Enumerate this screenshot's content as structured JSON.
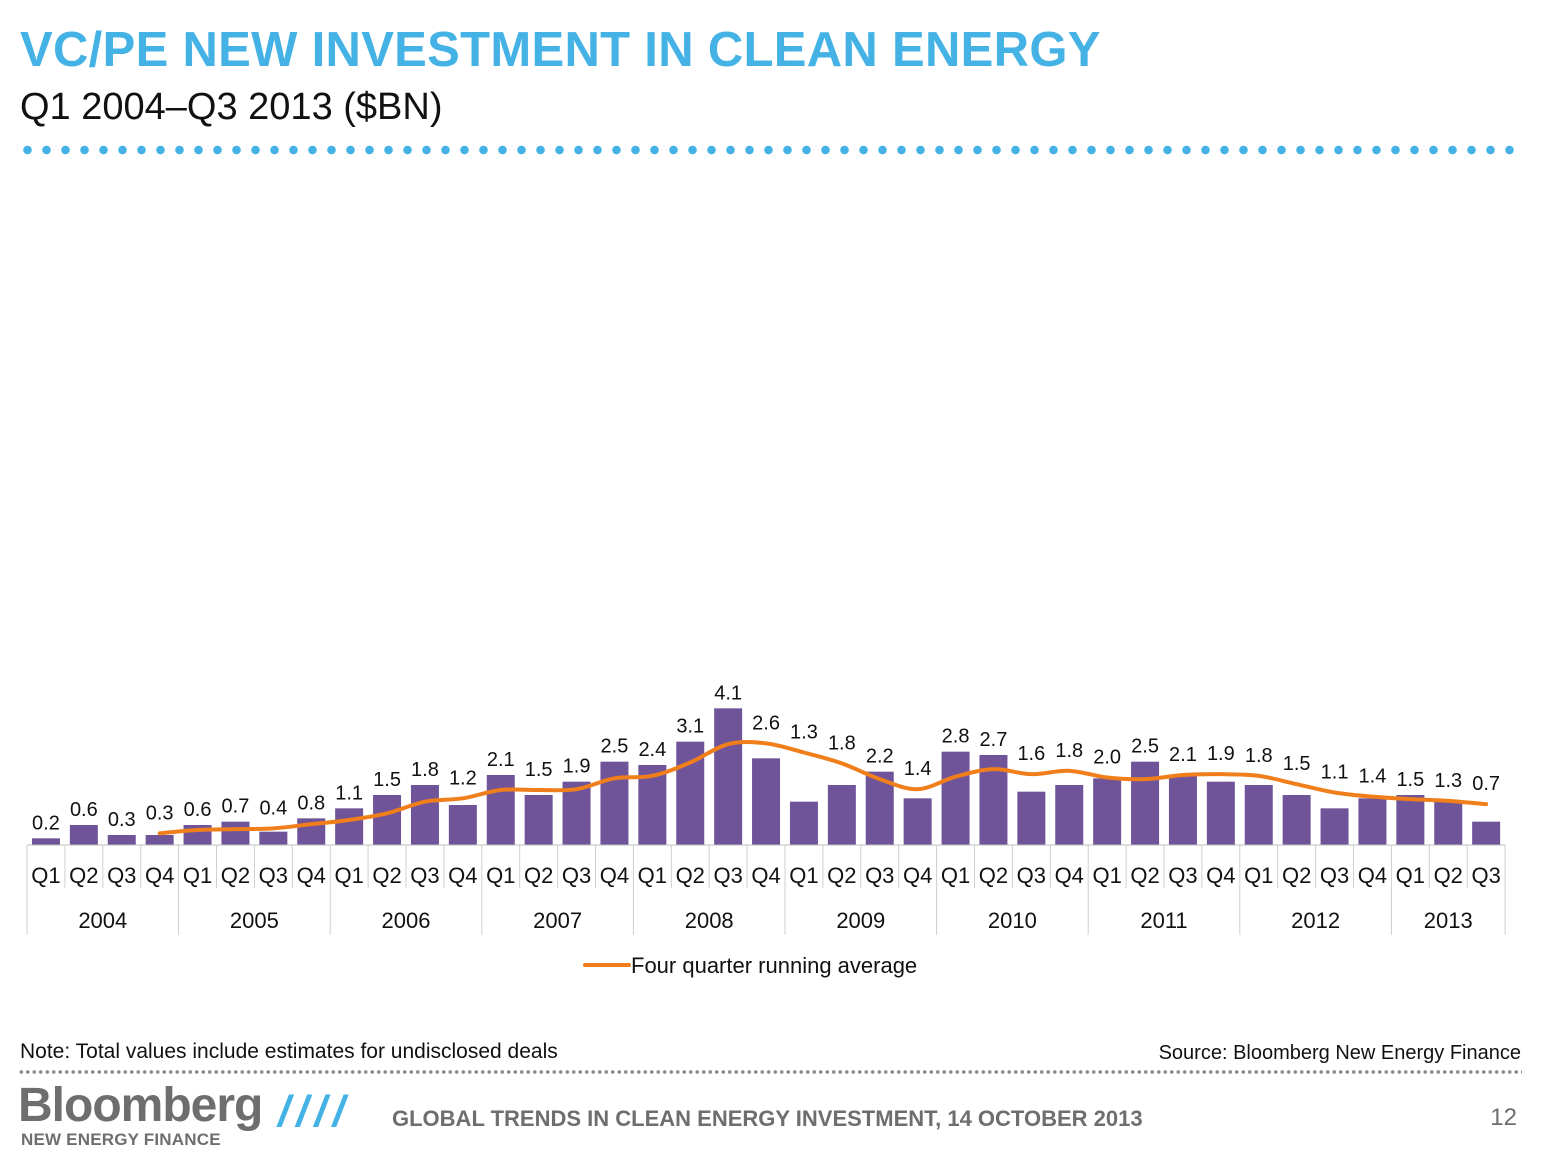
{
  "header": {
    "title": "VC/PE NEW INVESTMENT IN CLEAN ENERGY",
    "subtitle": "Q1 2004–Q3 2013 ($BN)"
  },
  "chart_data": {
    "type": "bar",
    "categories": [
      "Q1",
      "Q2",
      "Q3",
      "Q4",
      "Q1",
      "Q2",
      "Q3",
      "Q4",
      "Q1",
      "Q2",
      "Q3",
      "Q4",
      "Q1",
      "Q2",
      "Q3",
      "Q4",
      "Q1",
      "Q2",
      "Q3",
      "Q4",
      "Q1",
      "Q2",
      "Q3",
      "Q4",
      "Q1",
      "Q2",
      "Q3",
      "Q4",
      "Q1",
      "Q2",
      "Q3",
      "Q4",
      "Q1",
      "Q2",
      "Q3",
      "Q4",
      "Q1",
      "Q2",
      "Q3"
    ],
    "years": [
      "2004",
      "2005",
      "2006",
      "2007",
      "2008",
      "2009",
      "2010",
      "2011",
      "2012",
      "2013"
    ],
    "values": [
      0.2,
      0.6,
      0.3,
      0.3,
      0.6,
      0.7,
      0.4,
      0.8,
      1.1,
      1.5,
      1.8,
      1.2,
      2.1,
      1.5,
      1.9,
      2.5,
      2.4,
      3.1,
      4.1,
      2.6,
      1.3,
      1.8,
      2.2,
      1.4,
      2.8,
      2.7,
      1.6,
      1.8,
      2.0,
      2.5,
      2.1,
      1.9,
      1.8,
      1.5,
      1.1,
      1.4,
      1.5,
      1.3,
      0.7
    ],
    "value_labels": [
      "0.2",
      "0.6",
      "0.3",
      "0.3",
      "0.6",
      "0.7",
      "0.4",
      "0.8",
      "1.1",
      "1.5",
      "1.8",
      "1.2",
      "2.1",
      "1.5",
      "1.9",
      "2.5",
      "2.4",
      "3.1",
      "4.1",
      "2.6",
      "1.3",
      "1.8",
      "2.2",
      "1.4",
      "2.8",
      "2.7",
      "1.6",
      "1.8",
      "2.0",
      "2.5",
      "2.1",
      "1.9",
      "1.8",
      "1.5",
      "1.1",
      "1.4",
      "1.5",
      "1.3",
      "0.7"
    ],
    "running_average": {
      "name": "Four quarter running average",
      "values": [
        null,
        null,
        null,
        0.35,
        0.45,
        0.475,
        0.5,
        0.625,
        0.75,
        0.95,
        1.3,
        1.4,
        1.65,
        1.65,
        1.675,
        2.0,
        2.075,
        2.475,
        3.025,
        3.05,
        2.775,
        2.45,
        1.975,
        1.675,
        2.05,
        2.275,
        2.125,
        2.225,
        2.025,
        1.975,
        2.1,
        2.125,
        2.075,
        1.825,
        1.575,
        1.45,
        1.375,
        1.325,
        1.225
      ],
      "color": "#f07e1b"
    },
    "bar_color": "#6f5499",
    "ylim": [
      0,
      4.5
    ],
    "legend_position": "bottom-center",
    "grid": false
  },
  "note": "Note: Total values include estimates for undisclosed deals",
  "source": "Source: Bloomberg New Energy Finance",
  "footer": {
    "brand_logo": "Bloomberg",
    "brand_sub": "NEW ENERGY FINANCE",
    "slashes": "////",
    "text": "GLOBAL TRENDS IN CLEAN ENERGY INVESTMENT,  14 OCTOBER 2013",
    "page_number": "12"
  }
}
